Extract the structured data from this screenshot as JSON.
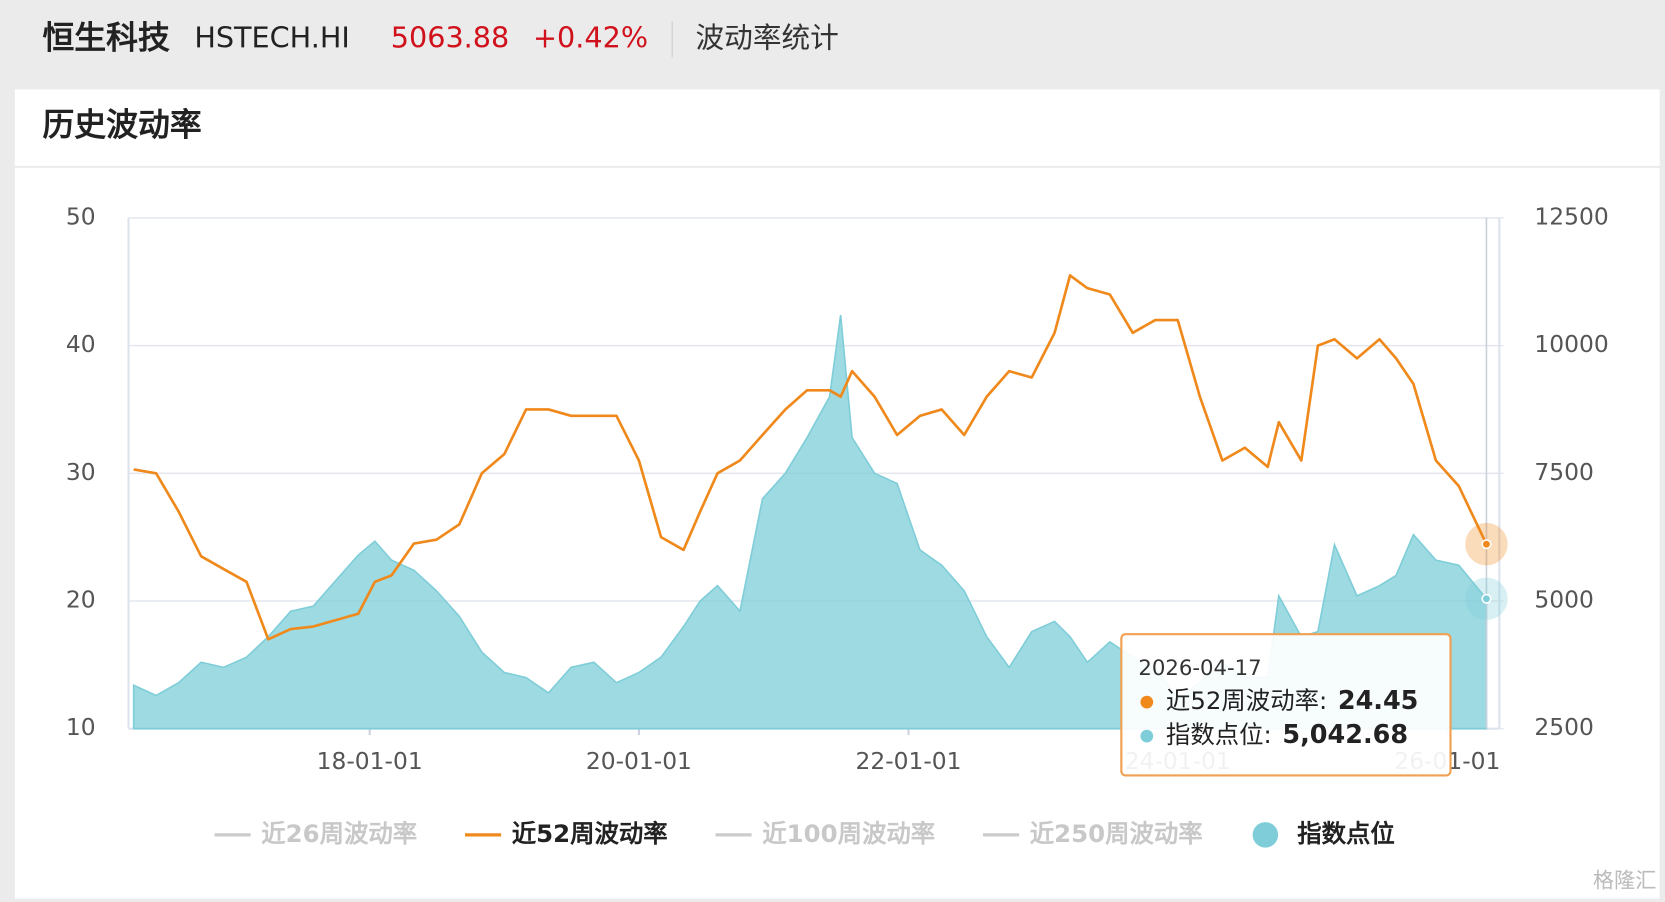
{
  "header": {
    "name": "恒生科技",
    "code": "HSTECH.HI",
    "price": 5063.88,
    "change": {
      "value": 0.42,
      "label": "+0.42%"
    },
    "page": "波动率统计"
  },
  "section_title": "历史波动率",
  "watermark": "格隆汇",
  "chart_data": {
    "type": "line",
    "x": [
      "2016-04-01",
      "2016-06-01",
      "2016-08-01",
      "2016-10-01",
      "2016-12-01",
      "2017-02-01",
      "2017-04-01",
      "2017-06-01",
      "2017-08-01",
      "2017-10-01",
      "2017-12-01",
      "2018-01-15",
      "2018-03-01",
      "2018-05-01",
      "2018-07-01",
      "2018-09-01",
      "2018-11-01",
      "2019-01-01",
      "2019-03-01",
      "2019-05-01",
      "2019-07-01",
      "2019-09-01",
      "2019-11-01",
      "2020-01-01",
      "2020-03-01",
      "2020-05-01",
      "2020-06-15",
      "2020-08-01",
      "2020-10-01",
      "2020-12-01",
      "2021-02-01",
      "2021-04-01",
      "2021-06-01",
      "2021-07-01",
      "2021-08-01",
      "2021-10-01",
      "2021-12-01",
      "2022-02-01",
      "2022-04-01",
      "2022-06-01",
      "2022-08-01",
      "2022-10-01",
      "2022-12-01",
      "2023-02-01",
      "2023-03-15",
      "2023-05-01",
      "2023-07-01",
      "2023-09-01",
      "2023-11-01",
      "2024-01-01",
      "2024-03-01",
      "2024-05-01",
      "2024-07-01",
      "2024-09-01",
      "2024-10-01",
      "2024-12-01",
      "2025-01-15",
      "2025-03-01",
      "2025-05-01",
      "2025-07-01",
      "2025-08-15",
      "2025-10-01",
      "2025-12-01",
      "2026-02-01",
      "2026-04-17"
    ],
    "xlim": [
      "2016-03-18",
      "2026-05-22"
    ],
    "xticks": [
      {
        "value": "2018-01-01",
        "label": "18-01-01"
      },
      {
        "value": "2020-01-01",
        "label": "20-01-01"
      },
      {
        "value": "2022-01-01",
        "label": "22-01-01"
      },
      {
        "value": "2024-01-01",
        "label": "24-01-01"
      },
      {
        "value": "2026-01-01",
        "label": "26-01-01"
      }
    ],
    "ylim": [
      10,
      50
    ],
    "yticks": [
      10,
      20,
      30,
      40,
      50
    ],
    "y2lim": [
      2500,
      12500
    ],
    "y2ticks": [
      2500,
      5000,
      7500,
      10000,
      12500
    ],
    "grid": true,
    "series": [
      {
        "name": "近26周波动率",
        "color": "#cccccc",
        "visible": false
      },
      {
        "name": "近52周波动率",
        "color": "#f0891c",
        "type": "line",
        "values": [
          30.3,
          30,
          27,
          23.5,
          22.5,
          21.5,
          17,
          17.8,
          18,
          18.5,
          19,
          21.5,
          22,
          24.5,
          24.8,
          26,
          30,
          31.5,
          35,
          35,
          34.5,
          34.5,
          34.5,
          31,
          25,
          24,
          27,
          30,
          31,
          33,
          35,
          36.5,
          36.5,
          36,
          38,
          36,
          33,
          34.5,
          35,
          33,
          36,
          38,
          37.5,
          41,
          45.5,
          44.5,
          44,
          41,
          42,
          42,
          36,
          31,
          32,
          30.5,
          34,
          31,
          40,
          40.5,
          39,
          40.5,
          39,
          37,
          31,
          29,
          24.45
        ]
      },
      {
        "name": "近100周波动率",
        "color": "#cccccc",
        "visible": false
      },
      {
        "name": "近250周波动率",
        "color": "#cccccc",
        "visible": false
      },
      {
        "name": "指数点位",
        "color": "#7ecdd8",
        "type": "area",
        "axis": "y2",
        "values": [
          3350,
          3150,
          3400,
          3800,
          3700,
          3900,
          4300,
          4800,
          4900,
          5400,
          5900,
          6170,
          5800,
          5600,
          5200,
          4700,
          4000,
          3600,
          3500,
          3200,
          3700,
          3800,
          3400,
          3600,
          3900,
          4500,
          5000,
          5300,
          4800,
          7000,
          7500,
          8200,
          9000,
          10600,
          8200,
          7500,
          7300,
          6000,
          5700,
          5200,
          4300,
          3700,
          4400,
          4600,
          4300,
          3800,
          4200,
          3900,
          3700,
          3100,
          3400,
          3800,
          3500,
          3500,
          5100,
          4300,
          4400,
          6100,
          5100,
          5300,
          5500,
          6300,
          5800,
          5700,
          5042.68
        ]
      }
    ],
    "tooltip": {
      "date": "2026-04-17",
      "items": [
        {
          "label": "近52周波动率:",
          "value": 24.45
        },
        {
          "label": "指数点位:",
          "value": 5042.68,
          "value_label": "5,042.68"
        }
      ]
    }
  }
}
